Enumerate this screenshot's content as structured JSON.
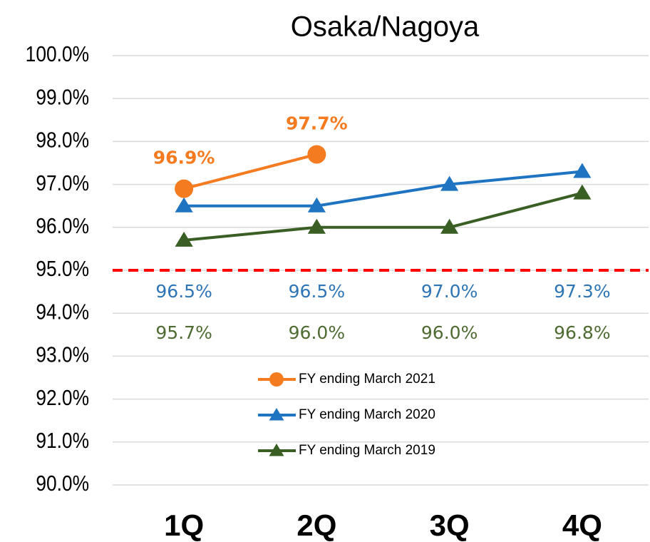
{
  "chart_data": {
    "type": "line",
    "title": "Osaka/Nagoya",
    "categories": [
      "1Q",
      "2Q",
      "3Q",
      "4Q"
    ],
    "series": [
      {
        "name": "FY ending March 2021",
        "color": "#f47b20",
        "marker": "circle",
        "values": [
          96.9,
          97.7,
          null,
          null
        ],
        "value_labels": [
          "96.9%",
          "97.7%",
          null,
          null
        ]
      },
      {
        "name": "FY ending March 2020",
        "color": "#1f74c2",
        "marker": "triangle",
        "values": [
          96.5,
          96.5,
          97.0,
          97.3
        ],
        "value_labels": [
          "96.5%",
          "96.5%",
          "97.0%",
          "97.3%"
        ]
      },
      {
        "name": "FY ending March 2019",
        "color": "#3a5f25",
        "marker": "triangle",
        "values": [
          95.7,
          96.0,
          96.0,
          96.8
        ],
        "value_labels": [
          "95.7%",
          "96.0%",
          "96.0%",
          "96.8%"
        ]
      }
    ],
    "ylim": [
      90,
      100
    ],
    "yticks": [
      {
        "value": 90,
        "label": "90.0%"
      },
      {
        "value": 91,
        "label": "91.0%"
      },
      {
        "value": 92,
        "label": "92.0%"
      },
      {
        "value": 93,
        "label": "93.0%"
      },
      {
        "value": 94,
        "label": "94.0%"
      },
      {
        "value": 95,
        "label": "95.0%"
      },
      {
        "value": 96,
        "label": "96.0%"
      },
      {
        "value": 97,
        "label": "97.0%"
      },
      {
        "value": 98,
        "label": "98.0%"
      },
      {
        "value": 99,
        "label": "99.0%"
      },
      {
        "value": 100,
        "label": "100.0%"
      }
    ],
    "grid": true,
    "reference_line": {
      "value": 95,
      "color": "#ff0000"
    }
  }
}
